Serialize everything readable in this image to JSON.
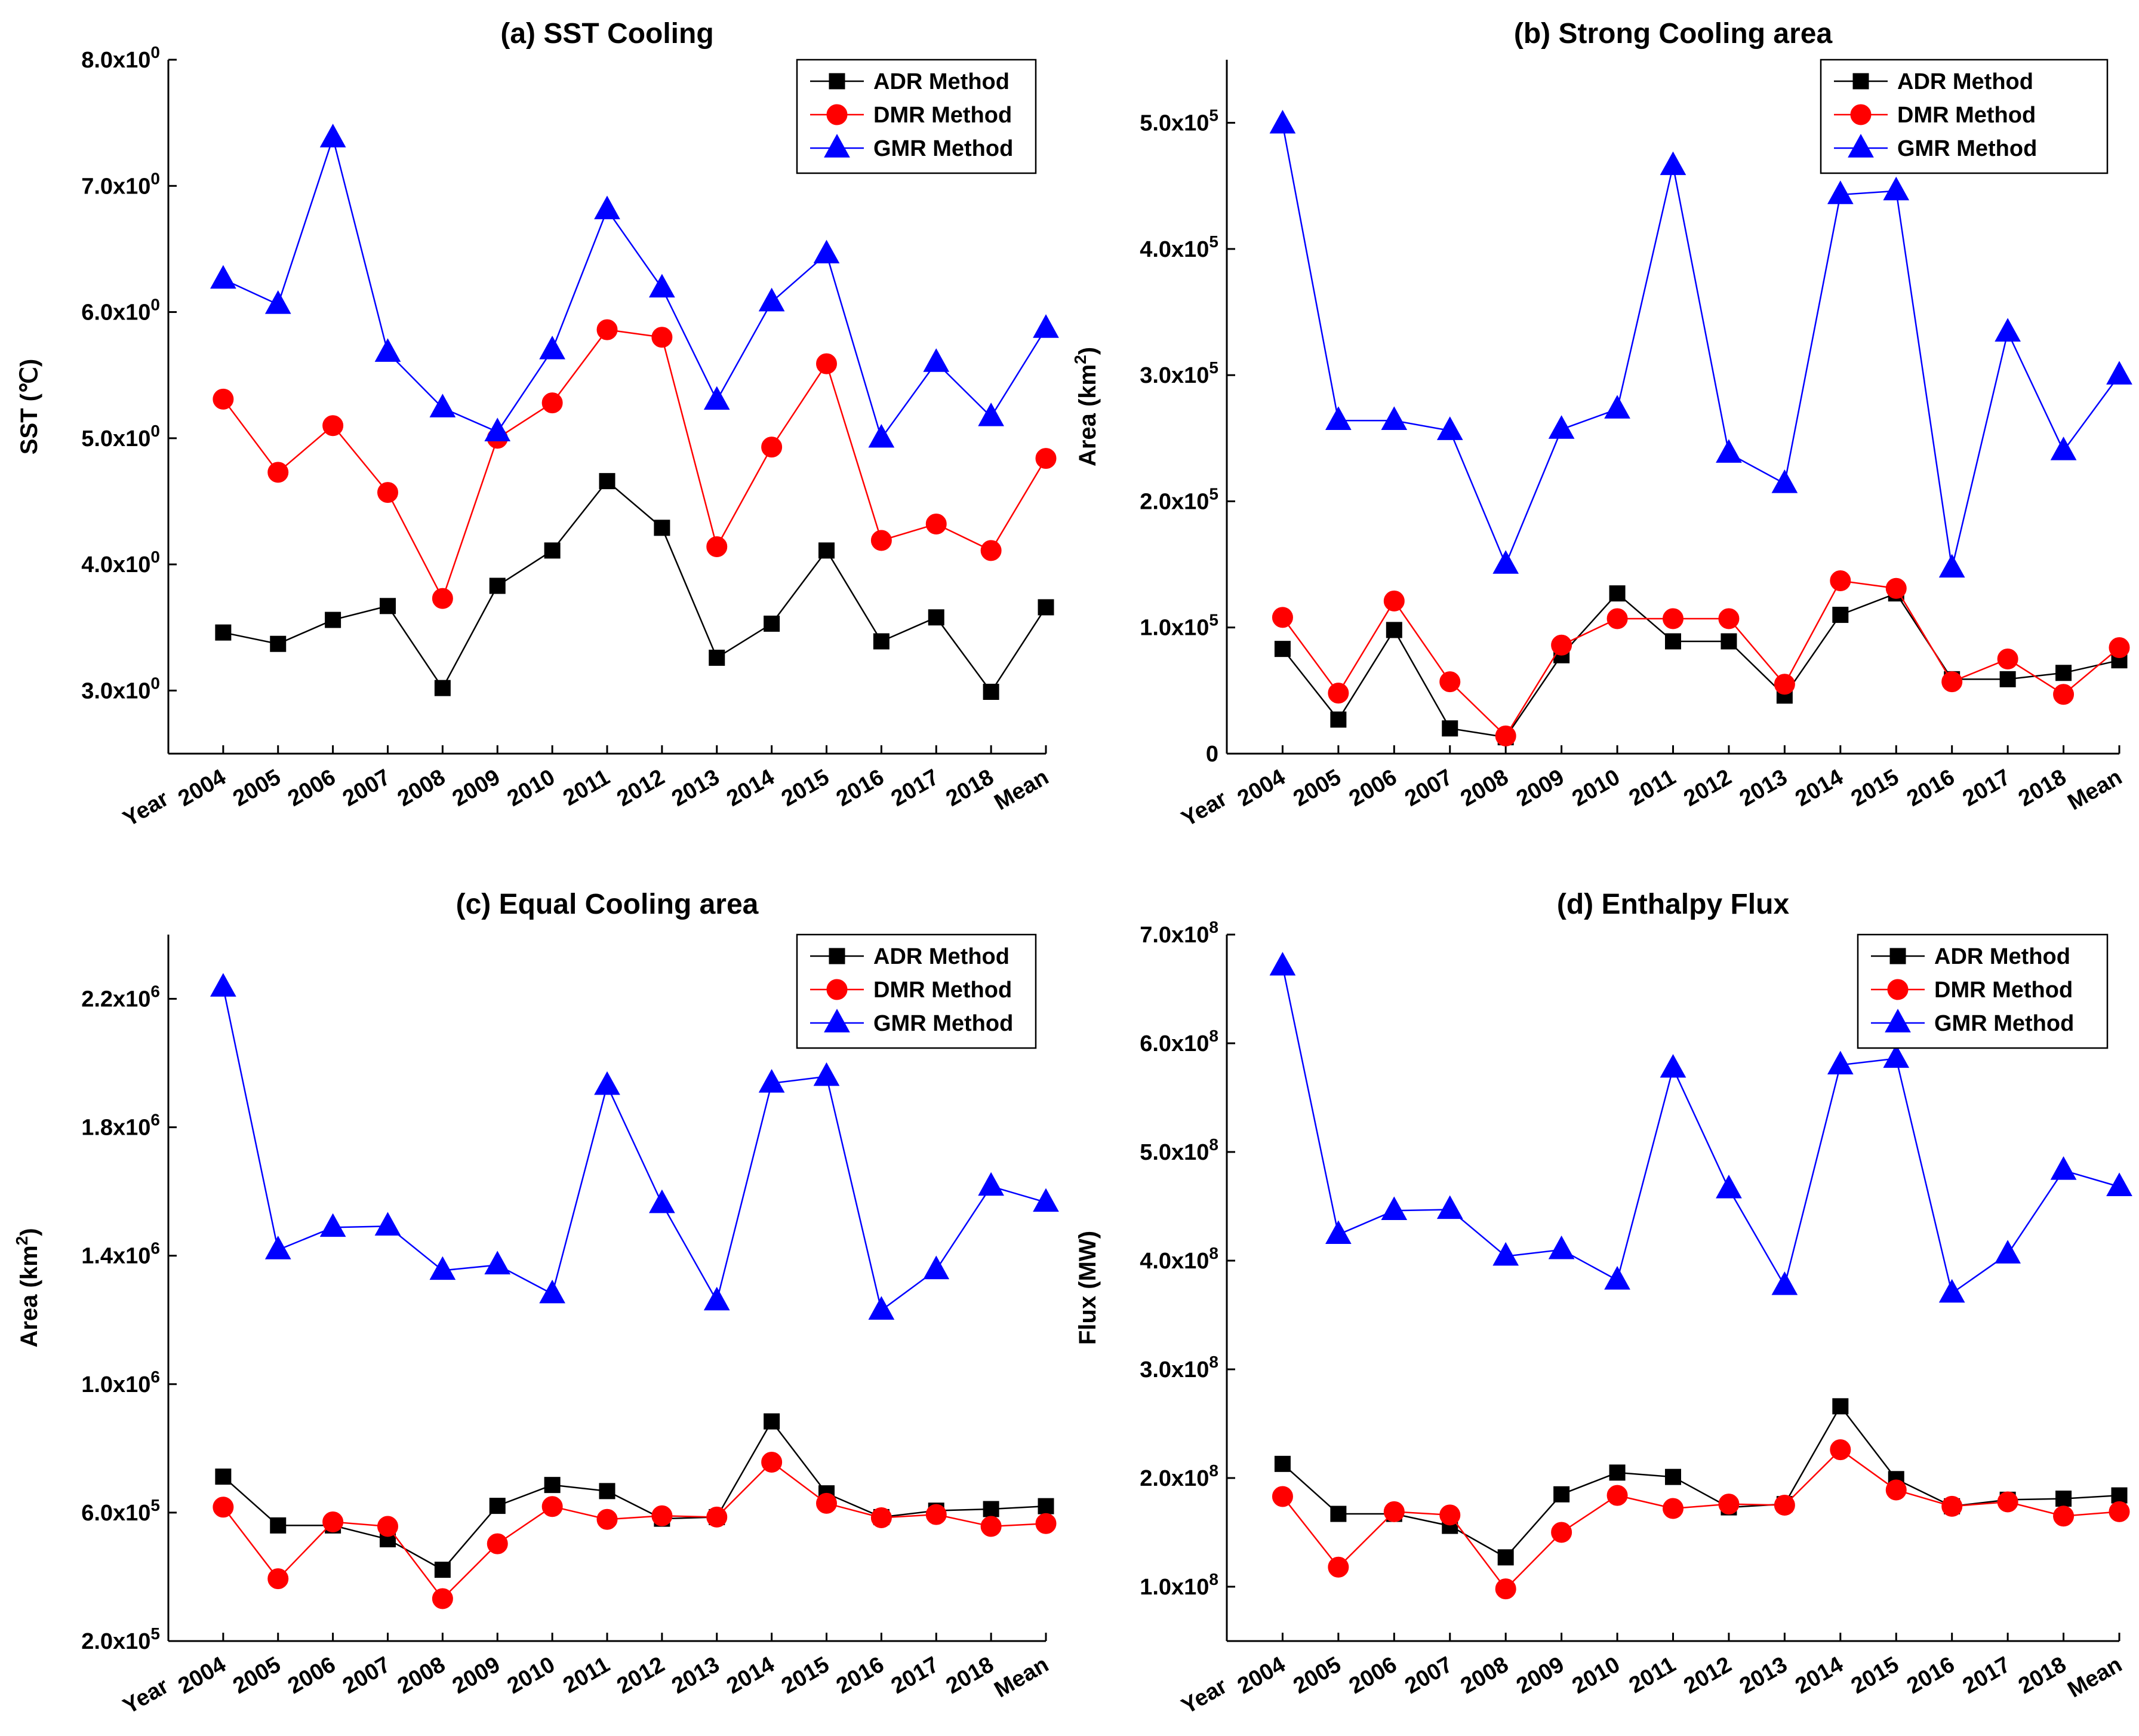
{
  "colors": {
    "ADR": "#000000",
    "DMR": "#ff0000",
    "GMR": "#0000ff"
  },
  "chart_data": [
    {
      "type": "line",
      "title": "(a) SST Cooling",
      "ylabel": "SST (℃)",
      "categories": [
        "2004",
        "2005",
        "2006",
        "2007",
        "2008",
        "2009",
        "2010",
        "2011",
        "2012",
        "2013",
        "2014",
        "2015",
        "2016",
        "2017",
        "2018",
        "Mean"
      ],
      "x_corner_label": "Year",
      "ylim": [
        2.5,
        8.0
      ],
      "yticks": [
        {
          "value": 3.0,
          "mant": "3.0x10",
          "exp": "0"
        },
        {
          "value": 4.0,
          "mant": "4.0x10",
          "exp": "0"
        },
        {
          "value": 5.0,
          "mant": "5.0x10",
          "exp": "0"
        },
        {
          "value": 6.0,
          "mant": "6.0x10",
          "exp": "0"
        },
        {
          "value": 7.0,
          "mant": "7.0x10",
          "exp": "0"
        },
        {
          "value": 8.0,
          "mant": "8.0x10",
          "exp": "0"
        }
      ],
      "series": [
        {
          "name": "ADR Method",
          "key": "ADR",
          "marker": "square",
          "values": [
            3.46,
            3.37,
            3.56,
            3.67,
            3.02,
            3.83,
            4.11,
            4.66,
            4.29,
            3.26,
            3.53,
            4.11,
            3.39,
            3.58,
            2.99,
            3.66
          ]
        },
        {
          "name": "DMR Method",
          "key": "DMR",
          "marker": "circle",
          "values": [
            5.31,
            4.73,
            5.1,
            4.57,
            3.73,
            5.0,
            5.28,
            5.86,
            5.8,
            4.14,
            4.93,
            5.59,
            4.19,
            4.32,
            4.11,
            4.84
          ]
        },
        {
          "name": "GMR Method",
          "key": "GMR",
          "marker": "triangle",
          "values": [
            6.26,
            6.06,
            7.38,
            5.68,
            5.24,
            5.05,
            5.7,
            6.81,
            6.19,
            5.3,
            6.08,
            6.46,
            5.0,
            5.6,
            5.17,
            5.87
          ]
        }
      ]
    },
    {
      "type": "line",
      "title": "(b) Strong Cooling area",
      "ylabel": "Area (km²)",
      "ylabel_base": "Area (km",
      "ylabel_sup": "2",
      "ylabel_tail": ")",
      "categories": [
        "2004",
        "2005",
        "2006",
        "2007",
        "2008",
        "2009",
        "2010",
        "2011",
        "2012",
        "2013",
        "2014",
        "2015",
        "2016",
        "2017",
        "2018",
        "Mean"
      ],
      "x_corner_label": "Year",
      "ylim": [
        0,
        550000
      ],
      "yticks": [
        {
          "value": 0,
          "mant": "0",
          "exp": ""
        },
        {
          "value": 100000,
          "mant": "1.0x10",
          "exp": "5"
        },
        {
          "value": 200000,
          "mant": "2.0x10",
          "exp": "5"
        },
        {
          "value": 300000,
          "mant": "3.0x10",
          "exp": "5"
        },
        {
          "value": 400000,
          "mant": "4.0x10",
          "exp": "5"
        },
        {
          "value": 500000,
          "mant": "5.0x10",
          "exp": "5"
        }
      ],
      "series": [
        {
          "name": "ADR Method",
          "key": "ADR",
          "marker": "square",
          "values": [
            83000,
            27000,
            98000,
            20000,
            13000,
            78000,
            127000,
            89000,
            89000,
            46000,
            110000,
            127000,
            59000,
            59000,
            64000,
            74000
          ]
        },
        {
          "name": "DMR Method",
          "key": "DMR",
          "marker": "circle",
          "values": [
            108000,
            48000,
            121000,
            57000,
            14000,
            86000,
            107000,
            107000,
            107000,
            55000,
            137000,
            131000,
            57000,
            75000,
            47000,
            84000
          ]
        },
        {
          "name": "GMR Method",
          "key": "GMR",
          "marker": "triangle",
          "values": [
            499000,
            264000,
            264000,
            256000,
            150000,
            257000,
            273000,
            466000,
            238000,
            214000,
            443000,
            446000,
            147000,
            334000,
            240000,
            300000
          ]
        }
      ]
    },
    {
      "type": "line",
      "title": "(c) Equal Cooling area",
      "ylabel": "Area (km²)",
      "ylabel_base": "Area (km",
      "ylabel_sup": "2",
      "ylabel_tail": ")",
      "categories": [
        "2004",
        "2005",
        "2006",
        "2007",
        "2008",
        "2009",
        "2010",
        "2011",
        "2012",
        "2013",
        "2014",
        "2015",
        "2016",
        "2017",
        "2018",
        "Mean"
      ],
      "x_corner_label": "Year",
      "ylim": [
        200000,
        2400000
      ],
      "yticks": [
        {
          "value": 200000,
          "mant": "2.0x10",
          "exp": "5"
        },
        {
          "value": 600000,
          "mant": "6.0x10",
          "exp": "5"
        },
        {
          "value": 1000000,
          "mant": "1.0x10",
          "exp": "6"
        },
        {
          "value": 1400000,
          "mant": "1.4x10",
          "exp": "6"
        },
        {
          "value": 1800000,
          "mant": "1.8x10",
          "exp": "6"
        },
        {
          "value": 2200000,
          "mant": "2.2x10",
          "exp": "6"
        }
      ],
      "series": [
        {
          "name": "ADR Method",
          "key": "ADR",
          "marker": "square",
          "values": [
            712000,
            560000,
            560000,
            517000,
            422000,
            621000,
            686000,
            667000,
            581000,
            586000,
            884000,
            660000,
            586000,
            606000,
            611000,
            620000
          ]
        },
        {
          "name": "DMR Method",
          "key": "DMR",
          "marker": "circle",
          "values": [
            617000,
            394000,
            571000,
            557000,
            332000,
            503000,
            619000,
            579000,
            590000,
            586000,
            757000,
            629000,
            584000,
            594000,
            557000,
            566000
          ]
        },
        {
          "name": "GMR Method",
          "key": "GMR",
          "marker": "triangle",
          "values": [
            2236000,
            1418000,
            1488000,
            1492000,
            1354000,
            1371000,
            1281000,
            1930000,
            1562000,
            1259000,
            1937000,
            1958000,
            1230000,
            1356000,
            1616000,
            1566000
          ]
        }
      ]
    },
    {
      "type": "line",
      "title": "(d) Enthalpy Flux",
      "ylabel": "Flux (MW)",
      "categories": [
        "2004",
        "2005",
        "2006",
        "2007",
        "2008",
        "2009",
        "2010",
        "2011",
        "2012",
        "2013",
        "2014",
        "2015",
        "2016",
        "2017",
        "2018",
        "Mean"
      ],
      "x_corner_label": "Year",
      "ylim": [
        50000000,
        700000000
      ],
      "yticks": [
        {
          "value": 100000000,
          "mant": "1.0x10",
          "exp": "8"
        },
        {
          "value": 200000000,
          "mant": "2.0x10",
          "exp": "8"
        },
        {
          "value": 300000000,
          "mant": "3.0x10",
          "exp": "8"
        },
        {
          "value": 400000000,
          "mant": "4.0x10",
          "exp": "8"
        },
        {
          "value": 500000000,
          "mant": "5.0x10",
          "exp": "8"
        },
        {
          "value": 600000000,
          "mant": "6.0x10",
          "exp": "8"
        },
        {
          "value": 700000000,
          "mant": "7.0x10",
          "exp": "8"
        }
      ],
      "series": [
        {
          "name": "ADR Method",
          "key": "ADR",
          "marker": "square",
          "values": [
            213000000,
            167000000,
            167000000,
            156000000,
            127000000,
            185000000,
            205000000,
            201000000,
            173000000,
            176000000,
            266000000,
            199000000,
            174000000,
            180000000,
            181000000,
            184000000
          ]
        },
        {
          "name": "DMR Method",
          "key": "DMR",
          "marker": "circle",
          "values": [
            183000000,
            118000000,
            169000000,
            166000000,
            98000000,
            150000000,
            184000000,
            172000000,
            176000000,
            175000000,
            226000000,
            189000000,
            174000000,
            178000000,
            165000000,
            169000000
          ]
        },
        {
          "name": "GMR Method",
          "key": "GMR",
          "marker": "triangle",
          "values": [
            671000000,
            424000000,
            446000000,
            447000000,
            404000000,
            410000000,
            382000000,
            577000000,
            466000000,
            377000000,
            580000000,
            586000000,
            370000000,
            406000000,
            483000000,
            468000000
          ]
        }
      ]
    }
  ]
}
